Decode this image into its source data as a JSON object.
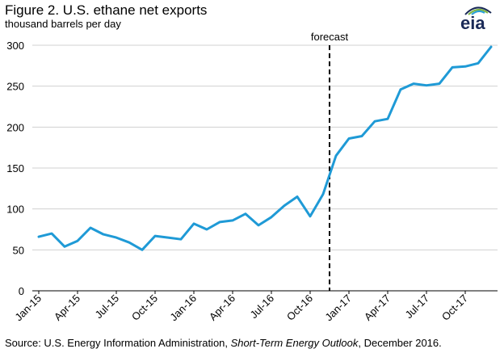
{
  "header": {
    "title": "Figure 2. U.S. ethane net exports",
    "subtitle": "thousand barrels per day"
  },
  "logo": {
    "text": "eia",
    "icon": "eia-logo-icon",
    "colors": [
      "#1a2a57",
      "#7cb342",
      "#29a0d8"
    ]
  },
  "footer": {
    "source_prefix": "Source: U.S. Energy Information Administration, ",
    "source_italic": "Short-Term Energy Outlook",
    "source_suffix": ", December 2016."
  },
  "chart_data": {
    "type": "line",
    "title": "Figure 2. U.S. ethane net exports",
    "ylabel": "thousand barrels per day",
    "xlabel": "",
    "ylim": [
      0,
      300
    ],
    "yticks": [
      0,
      50,
      100,
      150,
      200,
      250,
      300
    ],
    "grid": true,
    "line_color": "#1f9ad6",
    "annotation": {
      "label": "forecast",
      "between": [
        "Nov-16",
        "Dec-16"
      ]
    },
    "tick_labels": [
      {
        "label": "Jan-15",
        "index": 0
      },
      {
        "label": "Apr-15",
        "index": 3
      },
      {
        "label": "Jul-15",
        "index": 6
      },
      {
        "label": "Oct-15",
        "index": 9
      },
      {
        "label": "Jan-16",
        "index": 12
      },
      {
        "label": "Apr-16",
        "index": 15
      },
      {
        "label": "Jul-16",
        "index": 18
      },
      {
        "label": "Oct-16",
        "index": 21
      },
      {
        "label": "Jan-17",
        "index": 24
      },
      {
        "label": "Apr-17",
        "index": 27
      },
      {
        "label": "Jul-17",
        "index": 30
      },
      {
        "label": "Oct-17",
        "index": 33
      }
    ],
    "x": [
      "Jan-15",
      "Feb-15",
      "Mar-15",
      "Apr-15",
      "May-15",
      "Jun-15",
      "Jul-15",
      "Aug-15",
      "Sep-15",
      "Oct-15",
      "Nov-15",
      "Dec-15",
      "Jan-16",
      "Feb-16",
      "Mar-16",
      "Apr-16",
      "May-16",
      "Jun-16",
      "Jul-16",
      "Aug-16",
      "Sep-16",
      "Oct-16",
      "Nov-16",
      "Dec-16",
      "Jan-17",
      "Feb-17",
      "Mar-17",
      "Apr-17",
      "May-17",
      "Jun-17",
      "Jul-17",
      "Aug-17",
      "Sep-17",
      "Oct-17",
      "Nov-17",
      "Dec-17"
    ],
    "series": [
      {
        "values": [
          66,
          70,
          54,
          61,
          77,
          69,
          65,
          59,
          50,
          67,
          65,
          63,
          82,
          75,
          84,
          86,
          94,
          80,
          90,
          104,
          115,
          91,
          118,
          165,
          186,
          189,
          207,
          210,
          246,
          253,
          251,
          253,
          273,
          274,
          278,
          298
        ]
      }
    ]
  }
}
